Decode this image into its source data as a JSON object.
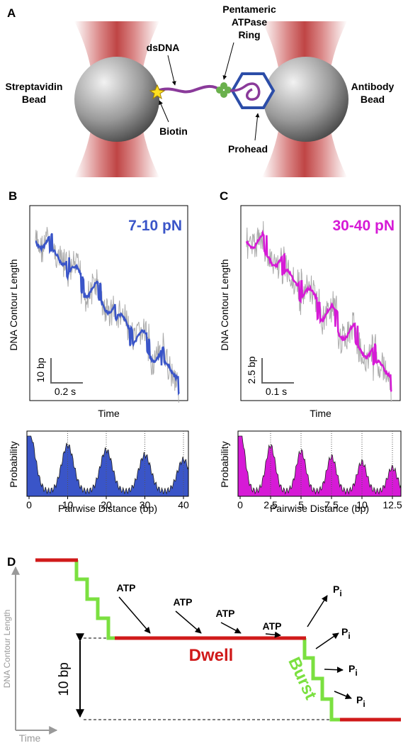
{
  "panel_a": {
    "label": "A",
    "streptavidin_bead": [
      "Streptavidin",
      "Bead"
    ],
    "dsdna": "dsDNA",
    "ring": [
      "Pentameric",
      "ATPase",
      "Ring"
    ],
    "antibody_bead": [
      "Antibody",
      "Bead"
    ],
    "biotin": "Biotin",
    "prohead": "Prohead"
  },
  "panel_b": {
    "label": "B",
    "force": "7-10 pN",
    "y_label": "DNA Contour Length",
    "scale_y": "10 bp",
    "scale_x": "0.2 s",
    "x_label": "Time",
    "hist_y_label": "Probability",
    "hist_x_label": "Pairwise Distance (bp)",
    "hist_ticks": [
      "0",
      "10",
      "20",
      "30",
      "40"
    ]
  },
  "panel_c": {
    "label": "C",
    "force": "30-40 pN",
    "y_label": "DNA Contour Length",
    "scale_y": "2.5 bp",
    "scale_x": "0.1 s",
    "x_label": "Time",
    "hist_y_label": "Probability",
    "hist_x_label": "Pairwise Distance (bp)",
    "hist_ticks": [
      "0",
      "2.5",
      "5",
      "7.5",
      "10",
      "12.5"
    ]
  },
  "panel_d": {
    "label": "D",
    "y_label": "DNA Contour Length",
    "x_label": "Time",
    "step": "10 bp",
    "dwell": "Dwell",
    "burst": "Burst",
    "atp": [
      "ATP",
      "ATP",
      "ATP",
      "ATP"
    ],
    "pi": [
      {
        "base": "P",
        "sub": "i"
      },
      {
        "base": "P",
        "sub": "i"
      },
      {
        "base": "P",
        "sub": "i"
      },
      {
        "base": "P",
        "sub": "i"
      }
    ]
  }
}
